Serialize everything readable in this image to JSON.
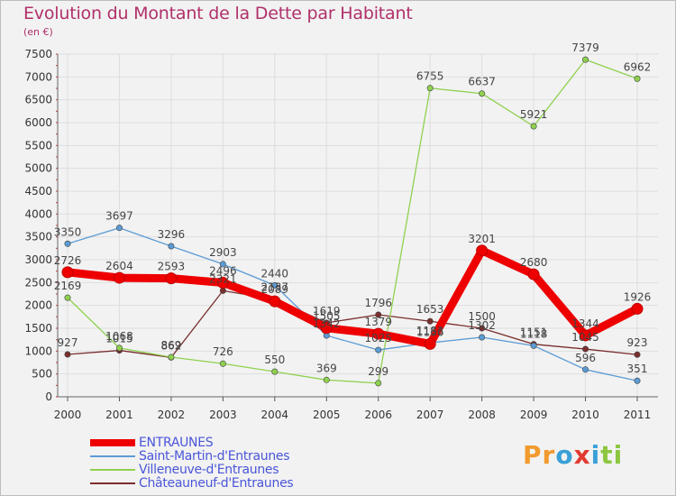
{
  "title": "Evolution du Montant de la Dette par Habitant",
  "subtitle": "(en €)",
  "brand": {
    "text": "Proxiti",
    "letters": [
      {
        "ch": "P",
        "color": "#f29a2e"
      },
      {
        "ch": "r",
        "color": "#f29a2e"
      },
      {
        "ch": "o",
        "color": "#3aa0d8"
      },
      {
        "ch": "x",
        "color": "#e23a2f"
      },
      {
        "ch": "i",
        "color": "#3aa0d8"
      },
      {
        "ch": "t",
        "color": "#8cc63f"
      },
      {
        "ch": "i",
        "color": "#8cc63f"
      }
    ]
  },
  "chart_data": {
    "type": "line",
    "x": [
      "2000",
      "2001",
      "2002",
      "2003",
      "2004",
      "2005",
      "2006",
      "2007",
      "2008",
      "2009",
      "2010",
      "2011"
    ],
    "yticks": [
      0,
      500,
      1000,
      1500,
      2000,
      2500,
      3000,
      3500,
      4000,
      4500,
      5000,
      5500,
      6000,
      6500,
      7000,
      7500
    ],
    "ylim": [
      0,
      7500
    ],
    "grid": true,
    "legend_position": "bottom-left",
    "series": [
      {
        "name": "ENTRAUNES",
        "color": "#ee0000",
        "values": [
          2726,
          2604,
          2593,
          2496,
          2089,
          1505,
          1379,
          1156,
          3201,
          2680,
          1344,
          1926
        ]
      },
      {
        "name": "Saint-Martin-d'Entraunes",
        "color": "#5b9bd5",
        "values": [
          3350,
          3697,
          3296,
          2903,
          2440,
          1342,
          1025,
          1183,
          1302,
          1118,
          596,
          351
        ]
      },
      {
        "name": "Villeneuve-d'Entraunes",
        "color": "#8fd14f",
        "values": [
          2169,
          1068,
          869,
          726,
          550,
          369,
          299,
          6755,
          6637,
          5921,
          7379,
          6962
        ]
      },
      {
        "name": "Châteauneuf-d'Entraunes",
        "color": "#7a2e2e",
        "values": [
          927,
          1015,
          862,
          2321,
          2137,
          1619,
          1796,
          1653,
          1500,
          1151,
          1045,
          923
        ]
      }
    ]
  }
}
